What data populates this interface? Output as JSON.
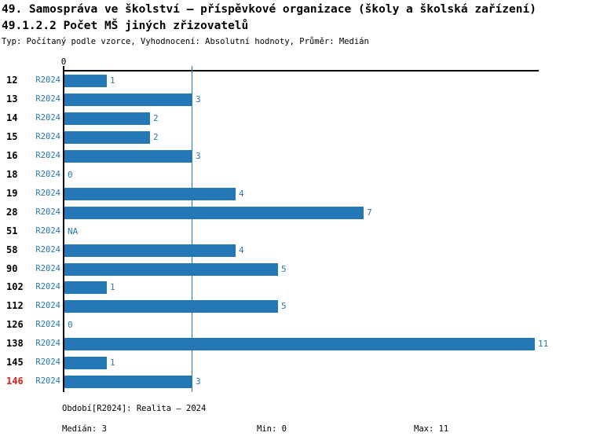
{
  "header": {
    "title_line1": "49. Samospráva ve školství – příspěvkové organizace (školy a školská zařízení)",
    "title_line2": "49.1.2.2 Počet MŠ jiných zřizovatelů",
    "subtitle": "Typ: Počítaný podle vzorce, Vyhodnocení: Absolutní hodnoty, Průměr: Medián"
  },
  "colors": {
    "bar_blue": "#2478b5",
    "text_blue": "#2478b5",
    "highlight_red": "#e01f1f",
    "axis_black": "#000000"
  },
  "chart_data": {
    "type": "bar",
    "orientation": "horizontal",
    "title": "49.1.2.2 Počet MŠ jiných zřizovatelů",
    "period_label": "R2024",
    "categories": [
      "12",
      "13",
      "14",
      "15",
      "16",
      "18",
      "19",
      "28",
      "51",
      "58",
      "90",
      "102",
      "112",
      "126",
      "138",
      "145",
      "146"
    ],
    "values": [
      1,
      3,
      2,
      2,
      3,
      0,
      4,
      7,
      "NA",
      4,
      5,
      1,
      5,
      0,
      11,
      1,
      3
    ],
    "highlighted_categories": [
      "146"
    ],
    "median_reference_line": 3,
    "xlim": [
      0,
      11
    ],
    "x_tick_labels": [
      "0"
    ],
    "zero_tick_label": "0",
    "na_label": "NA",
    "grid": false,
    "legend": "none"
  },
  "footer": {
    "period_info": "Období[R2024]: Realita – 2024",
    "median": "Medián: 3",
    "min": "Min: 0",
    "max": "Max: 11"
  }
}
